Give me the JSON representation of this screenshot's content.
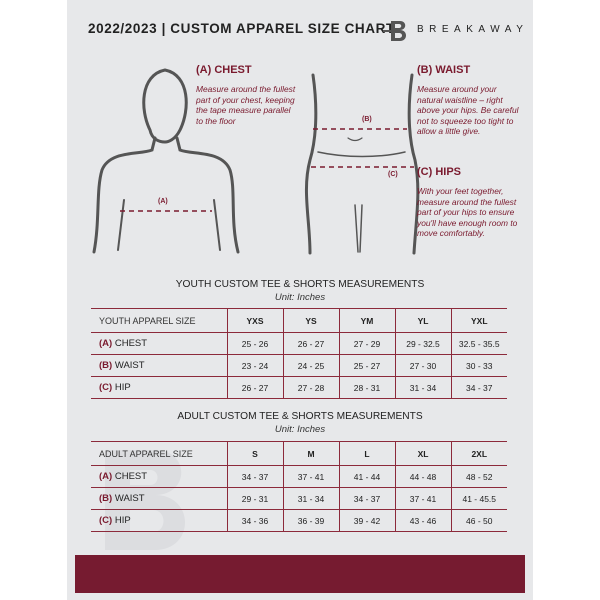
{
  "header": {
    "title": "2022/2023 | CUSTOM APPAREL SIZE CHART",
    "brand": "BREAKAWAY"
  },
  "guide": {
    "chest": {
      "title": "(A) CHEST",
      "desc": "Measure around the fullest part of your chest, keeping the tape measure parallel to the floor",
      "marker": "(A)"
    },
    "waist": {
      "title": "(B) WAIST",
      "desc": "Measure around your natural waistline – right above your hips. Be careful not to squeeze too tight to allow a little give.",
      "marker": "(B)"
    },
    "hips": {
      "title": "(C) HIPS",
      "desc": "With your feet together, measure around the fullest part of your hips to ensure you'll have enough room to move comfortably.",
      "marker": "(C)"
    }
  },
  "youth": {
    "title": "YOUTH CUSTOM TEE & SHORTS MEASUREMENTS",
    "unit": "Unit: Inches",
    "header": [
      "YOUTH APPAREL SIZE",
      "YXS",
      "YS",
      "YM",
      "YL",
      "YXL"
    ],
    "rows": [
      {
        "code": "(A)",
        "name": "CHEST",
        "values": [
          "25 - 26",
          "26 - 27",
          "27 - 29",
          "29 - 32.5",
          "32.5 - 35.5"
        ]
      },
      {
        "code": "(B)",
        "name": "WAIST",
        "values": [
          "23 - 24",
          "24 - 25",
          "25 - 27",
          "27 - 30",
          "30 - 33"
        ]
      },
      {
        "code": "(C)",
        "name": "HIP",
        "values": [
          "26 - 27",
          "27 - 28",
          "28 - 31",
          "31 - 34",
          "34 - 37"
        ]
      }
    ]
  },
  "adult": {
    "title": "ADULT CUSTOM TEE & SHORTS MEASUREMENTS",
    "unit": "Unit: Inches",
    "header": [
      "ADULT APPAREL SIZE",
      "S",
      "M",
      "L",
      "XL",
      "2XL"
    ],
    "rows": [
      {
        "code": "(A)",
        "name": "CHEST",
        "values": [
          "34 - 37",
          "37 - 41",
          "41 - 44",
          "44 - 48",
          "48 - 52"
        ]
      },
      {
        "code": "(B)",
        "name": "WAIST",
        "values": [
          "29 - 31",
          "31 - 34",
          "34 - 37",
          "37 - 41",
          "41 - 45.5"
        ]
      },
      {
        "code": "(C)",
        "name": "HIP",
        "values": [
          "34 - 36",
          "36 - 39",
          "39 - 42",
          "43 - 46",
          "46 - 50"
        ]
      }
    ]
  },
  "colors": {
    "accent": "#761b30",
    "background": "#e7e8ea"
  }
}
